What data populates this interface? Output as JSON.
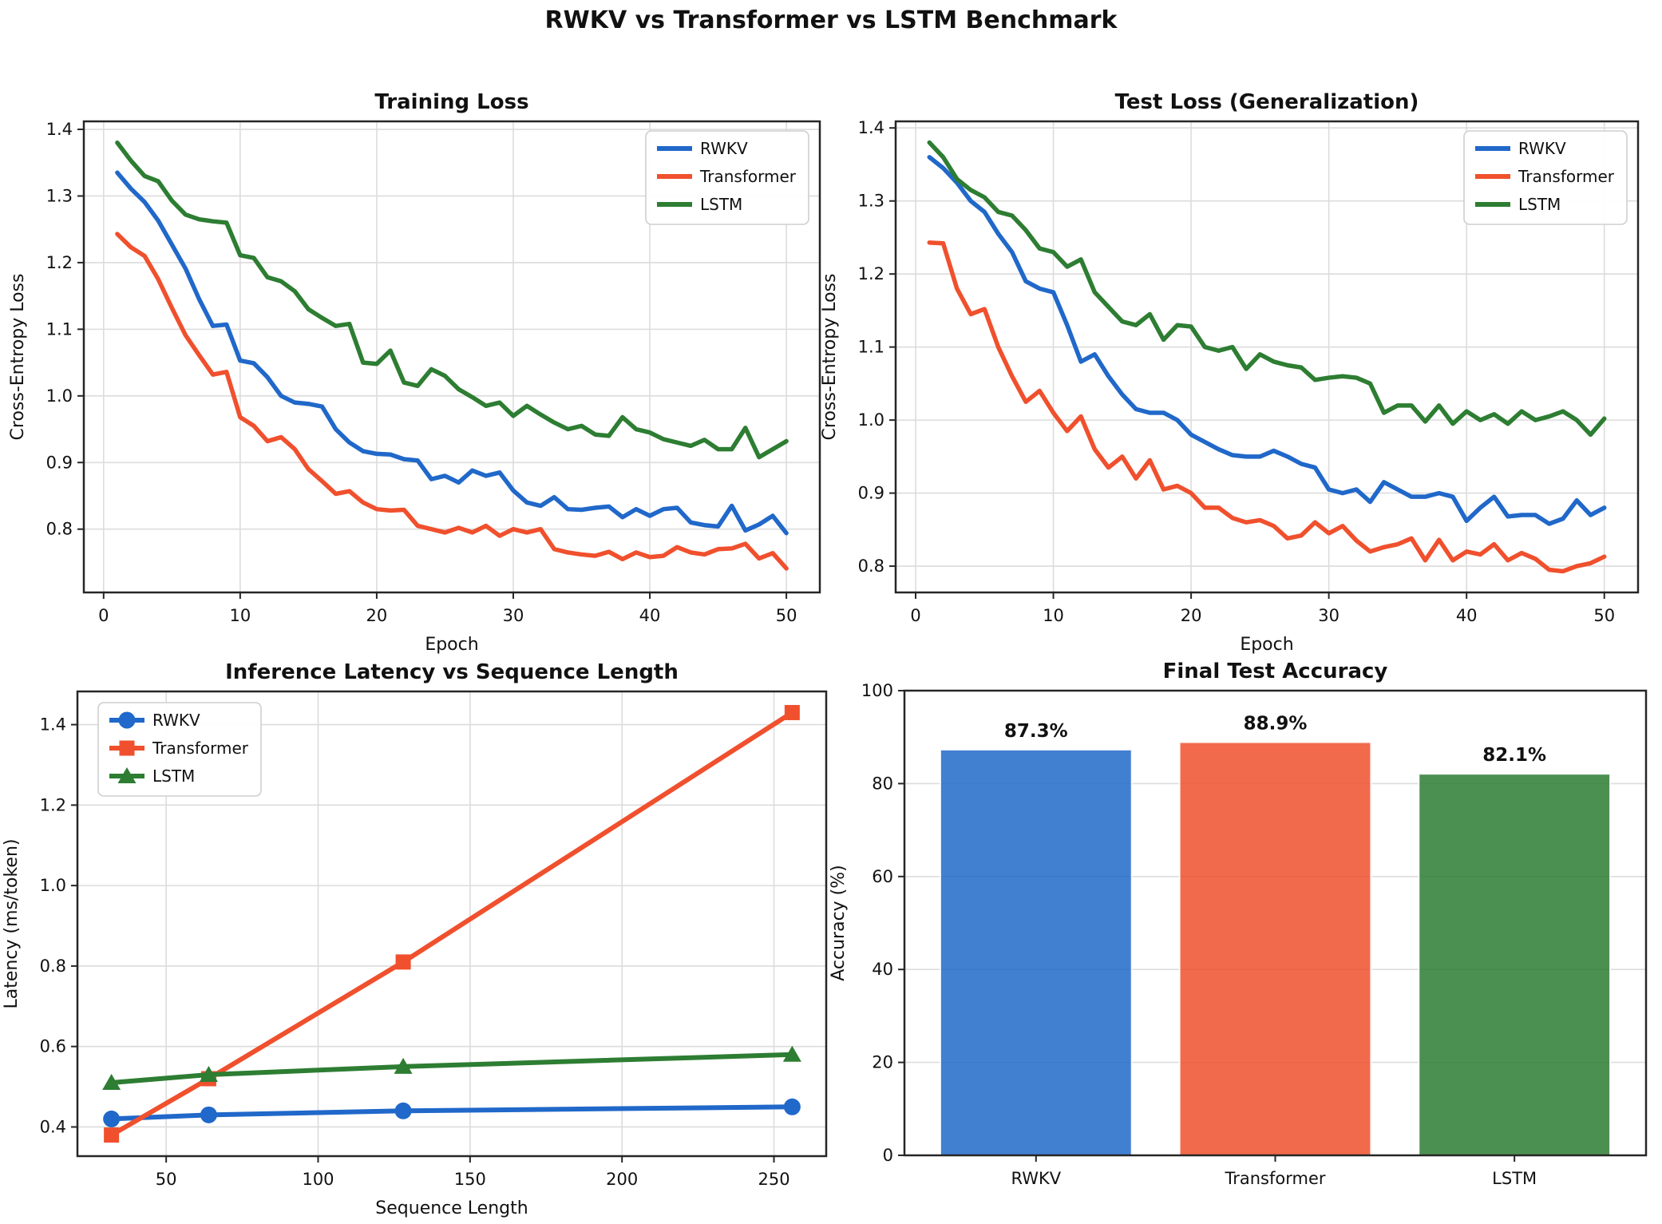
{
  "suptitle": "RWKV vs Transformer vs LSTM Benchmark",
  "models": [
    "RWKV",
    "Transformer",
    "LSTM"
  ],
  "colors": {
    "series": [
      "#2068c9",
      "#f0502d",
      "#2d7d32"
    ],
    "grid": "#dcdcdc",
    "spine": "#262626",
    "text": "#111111",
    "legend_border": "#cfcfcf"
  },
  "chart_data": [
    {
      "id": "training-loss",
      "type": "line",
      "title": "Training Loss",
      "xlabel": "Epoch",
      "ylabel": "Cross-Entropy Loss",
      "legend": "upper right",
      "grid": true,
      "xlim": [
        -1.45,
        52.45
      ],
      "ylim": [
        0.705,
        1.412
      ],
      "xticks": [
        0,
        10,
        20,
        30,
        40,
        50
      ],
      "yticks": [
        0.8,
        0.9,
        1.0,
        1.1,
        1.2,
        1.3,
        1.4
      ],
      "xtick_decimals": 0,
      "ytick_decimals": 1,
      "x": [
        1,
        2,
        3,
        4,
        5,
        6,
        7,
        8,
        9,
        10,
        11,
        12,
        13,
        14,
        15,
        16,
        17,
        18,
        19,
        20,
        21,
        22,
        23,
        24,
        25,
        26,
        27,
        28,
        29,
        30,
        31,
        32,
        33,
        34,
        35,
        36,
        37,
        38,
        39,
        40,
        41,
        42,
        43,
        44,
        45,
        46,
        47,
        48,
        49,
        50
      ],
      "series": [
        {
          "name": "RWKV",
          "values": [
            1.335,
            1.311,
            1.291,
            1.263,
            1.227,
            1.191,
            1.145,
            1.105,
            1.107,
            1.053,
            1.049,
            1.028,
            1.0,
            0.99,
            0.988,
            0.984,
            0.95,
            0.93,
            0.917,
            0.913,
            0.912,
            0.905,
            0.903,
            0.875,
            0.88,
            0.87,
            0.888,
            0.88,
            0.885,
            0.858,
            0.84,
            0.835,
            0.848,
            0.83,
            0.829,
            0.832,
            0.834,
            0.818,
            0.83,
            0.82,
            0.83,
            0.832,
            0.81,
            0.806,
            0.804,
            0.835,
            0.798,
            0.807,
            0.82,
            0.794
          ]
        },
        {
          "name": "Transformer",
          "values": [
            1.243,
            1.223,
            1.21,
            1.175,
            1.132,
            1.091,
            1.061,
            1.032,
            1.036,
            0.968,
            0.955,
            0.932,
            0.938,
            0.92,
            0.89,
            0.872,
            0.853,
            0.857,
            0.84,
            0.83,
            0.828,
            0.829,
            0.805,
            0.8,
            0.795,
            0.802,
            0.795,
            0.805,
            0.79,
            0.8,
            0.795,
            0.8,
            0.77,
            0.765,
            0.762,
            0.76,
            0.766,
            0.755,
            0.765,
            0.758,
            0.76,
            0.773,
            0.765,
            0.762,
            0.77,
            0.771,
            0.778,
            0.756,
            0.764,
            0.741
          ]
        },
        {
          "name": "LSTM",
          "values": [
            1.38,
            1.353,
            1.33,
            1.322,
            1.293,
            1.272,
            1.265,
            1.262,
            1.26,
            1.211,
            1.207,
            1.178,
            1.172,
            1.157,
            1.13,
            1.117,
            1.105,
            1.108,
            1.05,
            1.048,
            1.068,
            1.02,
            1.015,
            1.04,
            1.03,
            1.01,
            0.998,
            0.985,
            0.99,
            0.97,
            0.985,
            0.972,
            0.96,
            0.95,
            0.955,
            0.942,
            0.94,
            0.968,
            0.95,
            0.945,
            0.935,
            0.93,
            0.925,
            0.934,
            0.92,
            0.92,
            0.952,
            0.908,
            0.92,
            0.932
          ]
        }
      ]
    },
    {
      "id": "test-loss",
      "type": "line",
      "title": "Test Loss (Generalization)",
      "xlabel": "Epoch",
      "ylabel": "Cross-Entropy Loss",
      "legend": "upper right",
      "grid": true,
      "xlim": [
        -1.45,
        52.45
      ],
      "ylim": [
        0.764,
        1.409
      ],
      "xticks": [
        0,
        10,
        20,
        30,
        40,
        50
      ],
      "yticks": [
        0.8,
        0.9,
        1.0,
        1.1,
        1.2,
        1.3,
        1.4
      ],
      "xtick_decimals": 0,
      "ytick_decimals": 1,
      "x": [
        1,
        2,
        3,
        4,
        5,
        6,
        7,
        8,
        9,
        10,
        11,
        12,
        13,
        14,
        15,
        16,
        17,
        18,
        19,
        20,
        21,
        22,
        23,
        24,
        25,
        26,
        27,
        28,
        29,
        30,
        31,
        32,
        33,
        34,
        35,
        36,
        37,
        38,
        39,
        40,
        41,
        42,
        43,
        44,
        45,
        46,
        47,
        48,
        49,
        50
      ],
      "series": [
        {
          "name": "RWKV",
          "values": [
            1.36,
            1.345,
            1.325,
            1.3,
            1.285,
            1.255,
            1.23,
            1.19,
            1.18,
            1.175,
            1.13,
            1.08,
            1.09,
            1.06,
            1.035,
            1.015,
            1.01,
            1.01,
            1.0,
            0.98,
            0.97,
            0.96,
            0.952,
            0.95,
            0.95,
            0.958,
            0.95,
            0.94,
            0.935,
            0.905,
            0.9,
            0.905,
            0.888,
            0.915,
            0.905,
            0.895,
            0.895,
            0.9,
            0.895,
            0.862,
            0.88,
            0.895,
            0.868,
            0.87,
            0.87,
            0.858,
            0.865,
            0.89,
            0.87,
            0.88
          ]
        },
        {
          "name": "Transformer",
          "values": [
            1.243,
            1.242,
            1.18,
            1.145,
            1.152,
            1.1,
            1.06,
            1.025,
            1.04,
            1.01,
            0.985,
            1.005,
            0.96,
            0.935,
            0.95,
            0.92,
            0.945,
            0.905,
            0.91,
            0.9,
            0.88,
            0.88,
            0.866,
            0.86,
            0.863,
            0.855,
            0.838,
            0.842,
            0.86,
            0.845,
            0.855,
            0.835,
            0.82,
            0.826,
            0.83,
            0.838,
            0.808,
            0.836,
            0.808,
            0.82,
            0.816,
            0.83,
            0.808,
            0.818,
            0.81,
            0.795,
            0.793,
            0.8,
            0.804,
            0.813
          ]
        },
        {
          "name": "LSTM",
          "values": [
            1.38,
            1.36,
            1.33,
            1.315,
            1.305,
            1.285,
            1.28,
            1.26,
            1.235,
            1.23,
            1.21,
            1.22,
            1.175,
            1.155,
            1.135,
            1.13,
            1.145,
            1.11,
            1.13,
            1.128,
            1.1,
            1.095,
            1.1,
            1.07,
            1.09,
            1.08,
            1.075,
            1.072,
            1.055,
            1.058,
            1.06,
            1.058,
            1.05,
            1.01,
            1.02,
            1.02,
            0.998,
            1.02,
            0.995,
            1.012,
            1.0,
            1.008,
            0.995,
            1.012,
            1.0,
            1.005,
            1.012,
            1.0,
            0.98,
            1.002
          ]
        }
      ]
    },
    {
      "id": "latency",
      "type": "line",
      "title": "Inference Latency vs Sequence Length",
      "xlabel": "Sequence Length",
      "ylabel": "Latency (ms/token)",
      "legend": "upper left",
      "grid": true,
      "xlim": [
        20.8,
        267.2
      ],
      "ylim": [
        0.3275,
        1.4825
      ],
      "xticks": [
        50,
        100,
        150,
        200,
        250
      ],
      "yticks": [
        0.4,
        0.6,
        0.8,
        1.0,
        1.2,
        1.4
      ],
      "xtick_decimals": 0,
      "ytick_decimals": 1,
      "line_width": 6,
      "x": [
        32,
        64,
        128,
        256
      ],
      "series": [
        {
          "name": "RWKV",
          "marker": "circle",
          "values": [
            0.42,
            0.43,
            0.44,
            0.45
          ]
        },
        {
          "name": "Transformer",
          "marker": "square",
          "values": [
            0.38,
            0.52,
            0.81,
            1.43
          ]
        },
        {
          "name": "LSTM",
          "marker": "triangle",
          "values": [
            0.51,
            0.53,
            0.55,
            0.58
          ]
        }
      ]
    },
    {
      "id": "accuracy",
      "type": "bar",
      "title": "Final Test Accuracy",
      "xlabel": "",
      "ylabel": "Accuracy (%)",
      "grid": true,
      "xlim": [
        -0.55,
        2.55
      ],
      "ylim": [
        0,
        100
      ],
      "yticks": [
        0,
        20,
        40,
        60,
        80,
        100
      ],
      "ytick_decimals": 0,
      "categories": [
        "RWKV",
        "Transformer",
        "LSTM"
      ],
      "values": [
        87.3,
        88.9,
        82.1
      ],
      "bar_labels": [
        "87.3%",
        "88.9%",
        "82.1%"
      ],
      "bar_width": 0.8
    }
  ]
}
